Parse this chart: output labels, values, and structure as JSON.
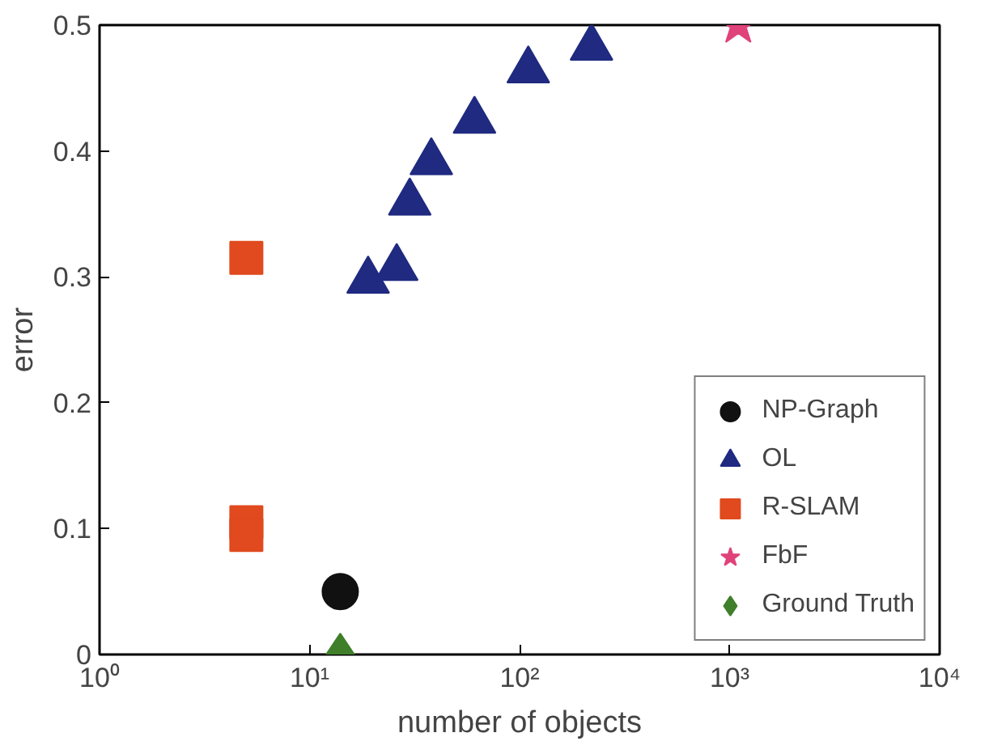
{
  "chart_data": {
    "type": "scatter",
    "xlabel": "number of objects",
    "ylabel": "error",
    "log": "x",
    "xlim": [
      1,
      10000
    ],
    "xticks": [
      {
        "value": 1,
        "label": "10⁰"
      },
      {
        "value": 10,
        "label": "10¹"
      },
      {
        "value": 100,
        "label": "10²"
      },
      {
        "value": 1000,
        "label": "10³"
      },
      {
        "value": 10000,
        "label": "10⁴"
      }
    ],
    "ylim": [
      0,
      0.5
    ],
    "yticks": [
      0,
      0.1,
      0.2,
      0.3,
      0.4,
      0.5
    ],
    "grid": false,
    "legend": "bottom right",
    "series": [
      {
        "name": "NP-Graph",
        "color": "#111111",
        "marker": "circle",
        "x": [
          14
        ],
        "values": [
          0.05
        ]
      },
      {
        "name": "OL",
        "color": "#1f2a80",
        "marker": "triangle",
        "x": [
          19,
          26,
          30,
          38,
          61,
          110,
          220
        ],
        "values": [
          0.297,
          0.307,
          0.359,
          0.391,
          0.424,
          0.464,
          0.482
        ]
      },
      {
        "name": "R-SLAM",
        "color": "#e04a1e",
        "marker": "square",
        "x": [
          5,
          5,
          5
        ],
        "values": [
          0.315,
          0.105,
          0.095
        ]
      },
      {
        "name": "FbF",
        "color": "#e0427a",
        "marker": "star",
        "x": [
          1100
        ],
        "values": [
          0.5
        ]
      },
      {
        "name": "Ground Truth",
        "color": "#3f7f2a",
        "marker": "diamond",
        "x": [
          14
        ],
        "values": [
          0
        ]
      }
    ]
  }
}
